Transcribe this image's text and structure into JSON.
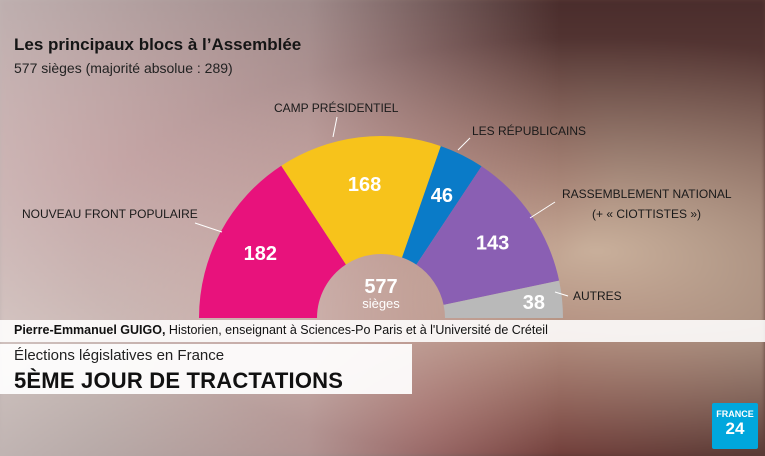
{
  "chart_data": {
    "type": "hemicycle",
    "title": "Les principaux blocs à l’Assemblée",
    "subtitle": "577 sièges (majorité absolue : 289)",
    "total": 577,
    "center_value": "577",
    "center_label": "sièges",
    "series": [
      {
        "name": "NOUVEAU FRONT POPULAIRE",
        "value": 182,
        "color": "#e8127c"
      },
      {
        "name": "CAMP PRÉSIDENTIEL",
        "value": 168,
        "color": "#f7c31b"
      },
      {
        "name": "LES RÉPUBLICAINS",
        "value": 46,
        "color": "#0a7bc8"
      },
      {
        "name": "RASSEMBLEMENT NATIONAL",
        "note": "(+ « CIOTTISTES »)",
        "value": 143,
        "color": "#8a5fb3"
      },
      {
        "name": "AUTRES",
        "value": 38,
        "color": "#b9b9b9"
      }
    ]
  },
  "credit": {
    "name": "Pierre-Emmanuel GUIGO,",
    "role": " Historien, enseignant à Sciences-Po Paris et à l'Université de Créteil"
  },
  "lower_third": {
    "kicker": "Élections législatives en France",
    "headline": "5ÈME JOUR DE TRACTATIONS"
  },
  "logo": {
    "line1": "FRANCE",
    "line2": "24"
  }
}
